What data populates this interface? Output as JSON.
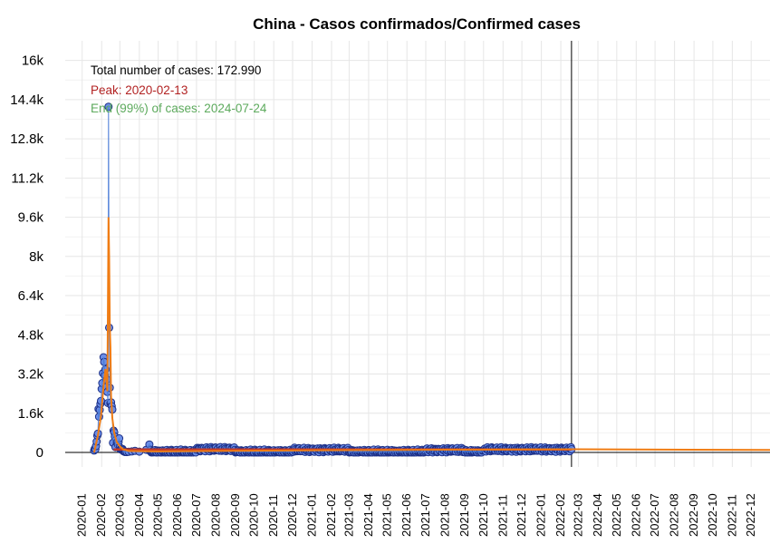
{
  "chart_data": {
    "type": "scatter",
    "title": "China - Casos confirmados/Confirmed cases",
    "xlabel": "",
    "ylabel": "",
    "ylim": [
      0,
      16800
    ],
    "xlim": [
      "2019-12-05",
      "2022-12-31"
    ],
    "grid": true,
    "y_ticks": [
      {
        "value": 0,
        "label": "0"
      },
      {
        "value": 1600,
        "label": "1.6k"
      },
      {
        "value": 3200,
        "label": "3.2k"
      },
      {
        "value": 4800,
        "label": "4.8k"
      },
      {
        "value": 6400,
        "label": "6.4k"
      },
      {
        "value": 8000,
        "label": "8k"
      },
      {
        "value": 9600,
        "label": "9.6k"
      },
      {
        "value": 11200,
        "label": "11.2k"
      },
      {
        "value": 12800,
        "label": "12.8k"
      },
      {
        "value": 14400,
        "label": "14.4k"
      },
      {
        "value": 16000,
        "label": "16k"
      }
    ],
    "x_ticks": [
      "2020-01",
      "2020-02",
      "2020-03",
      "2020-04",
      "2020-05",
      "2020-06",
      "2020-07",
      "2020-08",
      "2020-09",
      "2020-10",
      "2020-11",
      "2020-12",
      "2021-01",
      "2021-02",
      "2021-03",
      "2021-04",
      "2021-05",
      "2021-06",
      "2021-07",
      "2021-08",
      "2021-09",
      "2021-10",
      "2021-11",
      "2021-12",
      "2022-01",
      "2022-02",
      "2022-03",
      "2022-04",
      "2022-05",
      "2022-06",
      "2022-07",
      "2022-08",
      "2022-09",
      "2022-10",
      "2022-11",
      "2022-12"
    ],
    "annotations": {
      "total": "Total number of cases: 172.990",
      "peak": "Peak: 2020-02-13",
      "end": "End (99%) of cases: 2024-07-24"
    },
    "vline_date": "2022-02-18",
    "observed_end": "2022-02-18",
    "forecast_end": "2022-12-31",
    "early_points": [
      [
        "2020-01-20",
        77
      ],
      [
        "2020-01-21",
        149
      ],
      [
        "2020-01-22",
        131
      ],
      [
        "2020-01-23",
        259
      ],
      [
        "2020-01-24",
        444
      ],
      [
        "2020-01-25",
        688
      ],
      [
        "2020-01-26",
        769
      ],
      [
        "2020-01-27",
        1771
      ],
      [
        "2020-01-28",
        1459
      ],
      [
        "2020-01-29",
        1737
      ],
      [
        "2020-01-30",
        1982
      ],
      [
        "2020-01-31",
        2102
      ],
      [
        "2020-02-01",
        2590
      ],
      [
        "2020-02-02",
        2829
      ],
      [
        "2020-02-03",
        3235
      ],
      [
        "2020-02-04",
        3887
      ],
      [
        "2020-02-05",
        3694
      ],
      [
        "2020-02-06",
        3143
      ],
      [
        "2020-02-07",
        3385
      ],
      [
        "2020-02-08",
        2652
      ],
      [
        "2020-02-09",
        2973
      ],
      [
        "2020-02-10",
        2467
      ],
      [
        "2020-02-11",
        2015
      ],
      [
        "2020-02-12",
        14108
      ],
      [
        "2020-02-13",
        5090
      ],
      [
        "2020-02-14",
        2641
      ],
      [
        "2020-02-15",
        2009
      ],
      [
        "2020-02-16",
        2048
      ],
      [
        "2020-02-17",
        1886
      ],
      [
        "2020-02-18",
        1749
      ],
      [
        "2020-02-19",
        394
      ],
      [
        "2020-02-20",
        889
      ],
      [
        "2020-02-21",
        823
      ],
      [
        "2020-02-22",
        648
      ],
      [
        "2020-02-23",
        214
      ],
      [
        "2020-02-24",
        508
      ],
      [
        "2020-02-25",
        406
      ],
      [
        "2020-02-26",
        433
      ],
      [
        "2020-02-27",
        327
      ],
      [
        "2020-02-28",
        427
      ],
      [
        "2020-02-29",
        573
      ],
      [
        "2020-03-01",
        202
      ],
      [
        "2020-03-02",
        125
      ],
      [
        "2020-03-03",
        119
      ],
      [
        "2020-03-04",
        139
      ],
      [
        "2020-03-05",
        143
      ],
      [
        "2020-03-06",
        99
      ],
      [
        "2020-03-07",
        44
      ],
      [
        "2020-03-08",
        40
      ],
      [
        "2020-03-09",
        19
      ],
      [
        "2020-03-10",
        24
      ],
      [
        "2020-03-12",
        15
      ],
      [
        "2020-03-15",
        27
      ],
      [
        "2020-03-20",
        41
      ],
      [
        "2020-03-25",
        67
      ],
      [
        "2020-04-01",
        35
      ],
      [
        "2020-04-12",
        108
      ],
      [
        "2020-04-17",
        325
      ]
    ],
    "series": [
      {
        "values": [
          [
            "2020-01-20",
            0
          ],
          [
            "2020-01-26",
            700
          ],
          [
            "2020-01-31",
            1500
          ],
          [
            "2020-02-04",
            2700
          ],
          [
            "2020-02-07",
            3400
          ],
          [
            "2020-02-10",
            2500
          ],
          [
            "2020-02-11",
            6300
          ],
          [
            "2020-02-12",
            9600
          ],
          [
            "2020-02-13",
            7900
          ],
          [
            "2020-02-14",
            5100
          ],
          [
            "2020-02-15",
            4300
          ],
          [
            "2020-02-16",
            2300
          ],
          [
            "2020-02-18",
            1400
          ],
          [
            "2020-02-21",
            800
          ],
          [
            "2020-02-25",
            420
          ],
          [
            "2020-03-01",
            250
          ],
          [
            "2020-03-06",
            130
          ],
          [
            "2020-03-15",
            60
          ],
          [
            "2020-04-01",
            50
          ],
          [
            "2020-05-01",
            40
          ],
          [
            "2020-08-01",
            60
          ],
          [
            "2021-01-15",
            90
          ],
          [
            "2021-08-01",
            110
          ],
          [
            "2022-02-18",
            130
          ],
          [
            "2022-12-31",
            100
          ]
        ]
      }
    ]
  }
}
